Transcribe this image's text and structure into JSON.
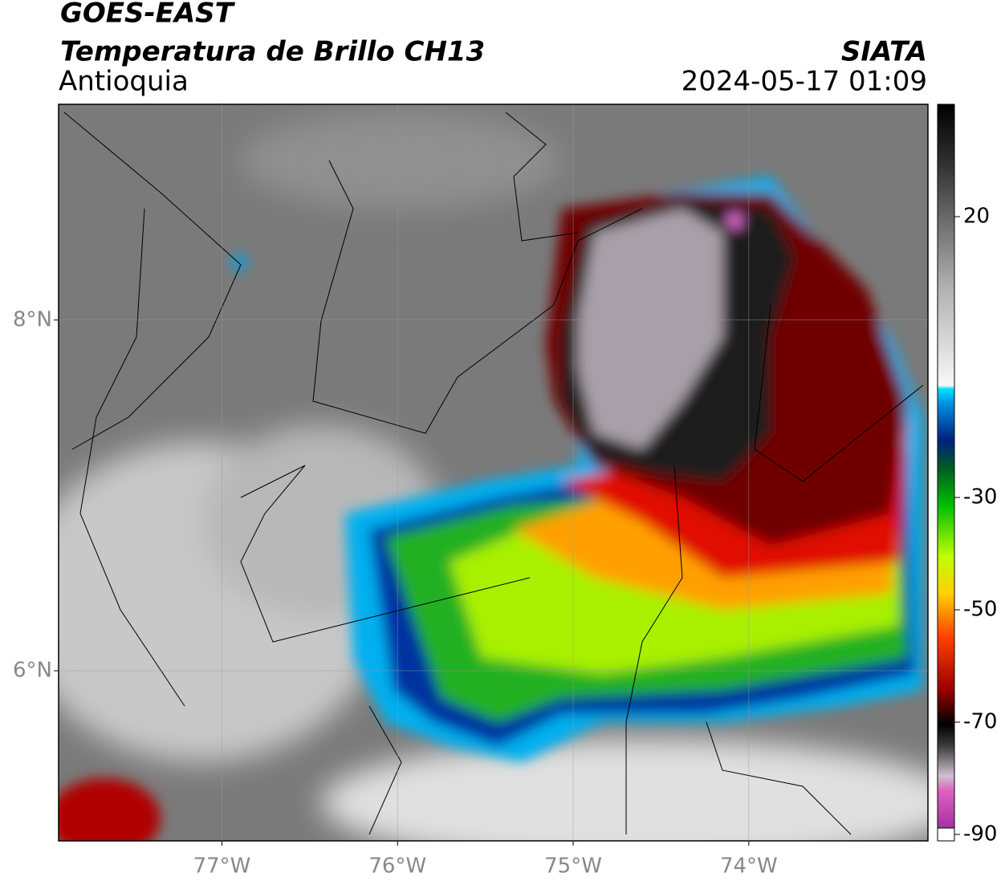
{
  "header": {
    "title": "GOES-EAST",
    "subtitle": "Temperatura de Brillo CH13",
    "region": "Antioquia",
    "source": "SIATA",
    "datetime": "2024-05-17 01:09"
  },
  "map": {
    "xlim": [
      -77.93,
      -72.98
    ],
    "ylim": [
      5.03,
      9.23
    ],
    "xticks": [
      {
        "value": -77,
        "label": "77°W"
      },
      {
        "value": -76,
        "label": "76°W"
      },
      {
        "value": -75,
        "label": "75°W"
      },
      {
        "value": -74,
        "label": "74°W"
      }
    ],
    "yticks": [
      {
        "value": 8,
        "label": "8°N"
      },
      {
        "value": 6,
        "label": "6°N"
      }
    ],
    "grid": true
  },
  "colorbar": {
    "lim": [
      -90,
      40
    ],
    "ticks": [
      20,
      -30,
      -50,
      -70,
      -90
    ]
  }
}
